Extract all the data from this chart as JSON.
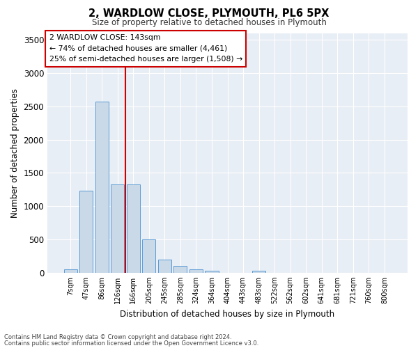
{
  "title1": "2, WARDLOW CLOSE, PLYMOUTH, PL6 5PX",
  "title2": "Size of property relative to detached houses in Plymouth",
  "xlabel": "Distribution of detached houses by size in Plymouth",
  "ylabel": "Number of detached properties",
  "bar_labels": [
    "7sqm",
    "47sqm",
    "86sqm",
    "126sqm",
    "166sqm",
    "205sqm",
    "245sqm",
    "285sqm",
    "324sqm",
    "364sqm",
    "404sqm",
    "443sqm",
    "483sqm",
    "522sqm",
    "562sqm",
    "602sqm",
    "641sqm",
    "681sqm",
    "721sqm",
    "760sqm",
    "800sqm"
  ],
  "bar_values": [
    55,
    1230,
    2570,
    1330,
    1330,
    500,
    195,
    105,
    50,
    25,
    0,
    0,
    25,
    0,
    0,
    0,
    0,
    0,
    0,
    0,
    0
  ],
  "bar_color": "#c9d9e8",
  "bar_edge_color": "#5b9bd5",
  "vline_x": 3.5,
  "vline_color": "#cc0000",
  "annotation_line1": "2 WARDLOW CLOSE: 143sqm",
  "annotation_line2": "← 74% of detached houses are smaller (4,461)",
  "annotation_line3": "25% of semi-detached houses are larger (1,508) →",
  "ylim": [
    0,
    3600
  ],
  "yticks": [
    0,
    500,
    1000,
    1500,
    2000,
    2500,
    3000,
    3500
  ],
  "footer_line1": "Contains HM Land Registry data © Crown copyright and database right 2024.",
  "footer_line2": "Contains public sector information licensed under the Open Government Licence v3.0.",
  "plot_bg_color": "#e8eef5"
}
